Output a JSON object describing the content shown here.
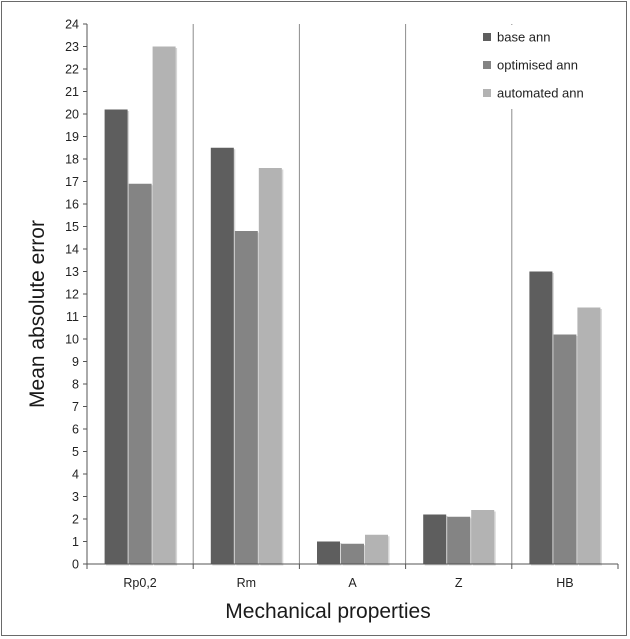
{
  "chart_data": {
    "type": "bar",
    "categories": [
      "Rp0,2",
      "Rm",
      "A",
      "Z",
      "HB"
    ],
    "series": [
      {
        "name": "base ann",
        "values": [
          20.2,
          18.5,
          1.0,
          2.2,
          13.0
        ],
        "color": "#5e5e5e"
      },
      {
        "name": "optimised ann",
        "values": [
          16.9,
          14.8,
          0.9,
          2.1,
          10.2
        ],
        "color": "#848484"
      },
      {
        "name": "automated ann",
        "values": [
          23.0,
          17.6,
          1.3,
          2.4,
          11.4
        ],
        "color": "#b3b3b3"
      }
    ],
    "ylim": [
      0,
      24
    ],
    "yticks": [
      0,
      1,
      2,
      3,
      4,
      5,
      6,
      7,
      8,
      9,
      10,
      11,
      12,
      13,
      14,
      15,
      16,
      17,
      18,
      19,
      20,
      21,
      22,
      23,
      24
    ],
    "xlabel": "Mechanical properties",
    "ylabel": "Mean absolute error",
    "grid": "vertical",
    "legend_position": "top-right"
  }
}
